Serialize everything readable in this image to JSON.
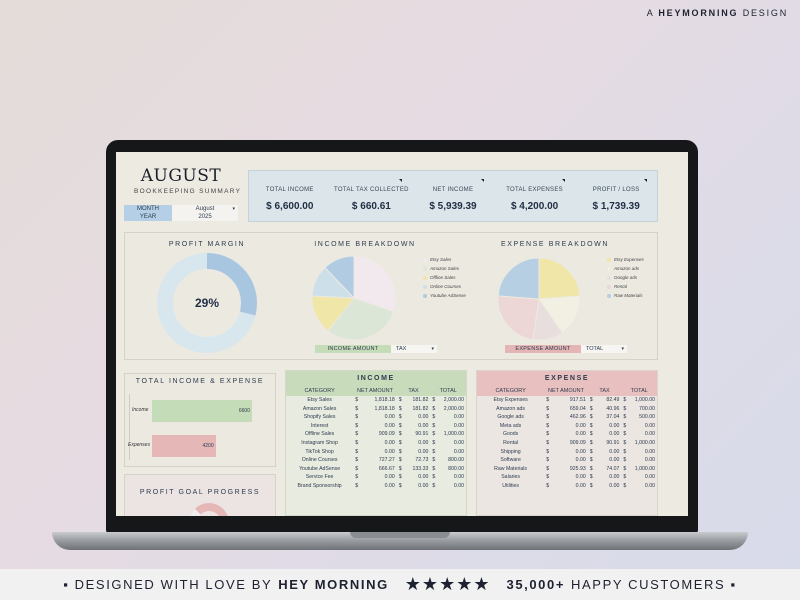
{
  "brand": {
    "prefix": "A",
    "name": "HEYMORNING",
    "suffix": "DESIGN"
  },
  "footer": {
    "lead": "▪ DESIGNED WITH LOVE BY",
    "brand": "HEY MORNING",
    "stars": "★★★★★",
    "count": "35,000+",
    "tail": "HAPPY CUSTOMERS ▪"
  },
  "header": {
    "title": "AUGUST",
    "subtitle": "BOOKKEEPING SUMMARY",
    "month_label": "MONTH",
    "month_value": "August",
    "year_label": "YEAR",
    "year_value": "2025"
  },
  "kpis": [
    {
      "label": "TOTAL INCOME",
      "value": "$ 6,600.00"
    },
    {
      "label": "TOTAL TAX COLLECTED",
      "value": "$ 660.61"
    },
    {
      "label": "NET INCOME",
      "value": "$ 5,939.39"
    },
    {
      "label": "TOTAL EXPENSES",
      "value": "$ 4,200.00"
    },
    {
      "label": "PROFIT / LOSS",
      "value": "$ 1,739.39"
    }
  ],
  "profit_margin": {
    "title": "PROFIT MARGIN",
    "label": "29%",
    "value": 0.29,
    "color": "#a9c6e0",
    "track": "#d8e6ee"
  },
  "income_breakdown": {
    "title": "INCOME BREAKDOWN",
    "legend": [
      {
        "name": "Etsy Sales",
        "color": "#f2e9ef"
      },
      {
        "name": "Amazon Sales",
        "color": "#dce6d6"
      },
      {
        "name": "Offline Sales",
        "color": "#efe6a8"
      },
      {
        "name": "Online Courses",
        "color": "#cde0ea"
      },
      {
        "name": "Youtube AdSense",
        "color": "#b1cbe3"
      }
    ],
    "ctrl_a": "INCOME AMOUNT",
    "ctrl_b": "TAX",
    "ctrl_color": "#c5dcb8"
  },
  "expense_breakdown": {
    "title": "EXPENSE BREAKDOWN",
    "legend": [
      {
        "name": "Etsy Expenses",
        "color": "#efe6a8"
      },
      {
        "name": "Amazon ads",
        "color": "#f2f0e2"
      },
      {
        "name": "Google ads",
        "color": "#e9dede"
      },
      {
        "name": "Rental",
        "color": "#ecd6d6"
      },
      {
        "name": "Raw Materials",
        "color": "#b7cfe3"
      }
    ],
    "ctrl_a": "EXPENSE AMOUNT",
    "ctrl_b": "TOTAL",
    "ctrl_color": "#e3b5b5"
  },
  "total_ie": {
    "title": "TOTAL INCOME & EXPENSE",
    "bars": [
      {
        "label": "Income",
        "value": "6600",
        "num": 6600,
        "color": "#c5dcb8"
      },
      {
        "label": "Expenses",
        "value": "4200",
        "num": 4200,
        "color": "#e6b7b7"
      }
    ],
    "max": 6600
  },
  "profit_goal": {
    "title": "PROFIT GOAL PROGRESS"
  },
  "income_table": {
    "title": "INCOME",
    "head_color": "#c8dcbc",
    "cols": [
      "CATEGORY",
      "NET AMOUNT",
      "TAX",
      "TOTAL"
    ],
    "rows": [
      [
        "Etsy Sales",
        "1,818.18",
        "181.82",
        "2,000.00"
      ],
      [
        "Amazon Sales",
        "1,818.18",
        "181.82",
        "2,000.00"
      ],
      [
        "Shopify Sales",
        "0.00",
        "0.00",
        "0.00"
      ],
      [
        "Interest",
        "0.00",
        "0.00",
        "0.00"
      ],
      [
        "Offline Sales",
        "909.09",
        "90.91",
        "1,000.00"
      ],
      [
        "Instagram Shop",
        "0.00",
        "0.00",
        "0.00"
      ],
      [
        "TikTok Shop",
        "0.00",
        "0.00",
        "0.00"
      ],
      [
        "Online Courses",
        "727.27",
        "72.73",
        "800.00"
      ],
      [
        "Youtube AdSense",
        "666.67",
        "133.33",
        "800.00"
      ],
      [
        "Service Fee",
        "0.00",
        "0.00",
        "0.00"
      ],
      [
        "Brand Sponsorship",
        "0.00",
        "0.00",
        "0.00"
      ]
    ]
  },
  "expense_table": {
    "title": "EXPENSE",
    "head_color": "#e8c0c0",
    "cols": [
      "CATEGORY",
      "NET AMOUNT",
      "TAX",
      "TOTAL"
    ],
    "rows": [
      [
        "Etsy Expenses",
        "917.51",
        "82.49",
        "1,000.00"
      ],
      [
        "Amazon ads",
        "659.04",
        "40.96",
        "700.00"
      ],
      [
        "Google ads",
        "462.96",
        "37.04",
        "500.00"
      ],
      [
        "Meta ads",
        "0.00",
        "0.00",
        "0.00"
      ],
      [
        "Goods",
        "0.00",
        "0.00",
        "0.00"
      ],
      [
        "Rental",
        "909.09",
        "90.91",
        "1,000.00"
      ],
      [
        "Shipping",
        "0.00",
        "0.00",
        "0.00"
      ],
      [
        "Software",
        "0.00",
        "0.00",
        "0.00"
      ],
      [
        "Raw Materials",
        "925.93",
        "74.07",
        "1,000.00"
      ],
      [
        "Salaries",
        "0.00",
        "0.00",
        "0.00"
      ],
      [
        "Utilities",
        "0.00",
        "0.00",
        "0.00"
      ]
    ]
  },
  "chart_data": [
    {
      "type": "pie",
      "title": "PROFIT MARGIN",
      "categories": [
        "Profit",
        "Remainder"
      ],
      "values": [
        29,
        71
      ]
    },
    {
      "type": "pie",
      "title": "INCOME BREAKDOWN",
      "categories": [
        "Etsy Sales",
        "Amazon Sales",
        "Offline Sales",
        "Online Courses",
        "Youtube AdSense"
      ],
      "values": [
        2000,
        2000,
        1000,
        800,
        800
      ]
    },
    {
      "type": "pie",
      "title": "EXPENSE BREAKDOWN",
      "categories": [
        "Etsy Expenses",
        "Amazon ads",
        "Google ads",
        "Rental",
        "Raw Materials"
      ],
      "values": [
        1000,
        700,
        500,
        1000,
        1000
      ]
    },
    {
      "type": "bar",
      "title": "TOTAL INCOME & EXPENSE",
      "categories": [
        "Income",
        "Expenses"
      ],
      "values": [
        6600,
        4200
      ]
    }
  ]
}
